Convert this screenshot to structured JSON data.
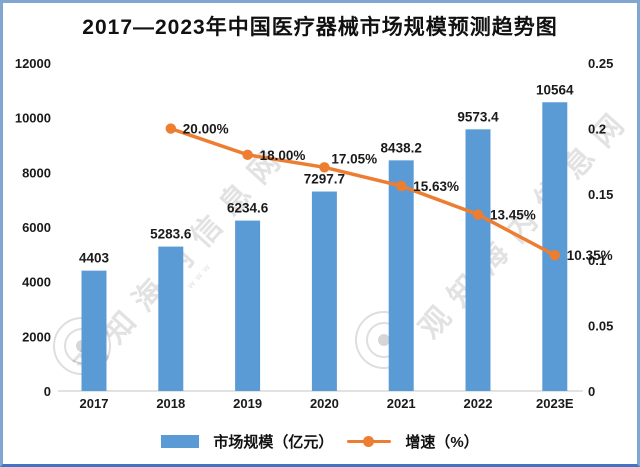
{
  "title": "2017—2023年中国医疗器械市场规模预测趋势图",
  "chart_data": {
    "type": "bar",
    "subtype": "bar+line combo, dual axis",
    "title": "2017—2023年中国医疗器械市场规模预测趋势图",
    "xlabel": "",
    "ylabel": "",
    "categories": [
      "2017",
      "2018",
      "2019",
      "2020",
      "2021",
      "2022",
      "2023E"
    ],
    "series": [
      {
        "name": "市场规模（亿元）",
        "type": "bar",
        "axis": "left",
        "values": [
          4403,
          5283.6,
          6234.6,
          7297.7,
          8438.2,
          9573.4,
          10564
        ],
        "data_labels": [
          "4403",
          "5283.6",
          "6234.6",
          "7297.7",
          "8438.2",
          "9573.4",
          "10564"
        ]
      },
      {
        "name": "增速（%）",
        "type": "line",
        "axis": "right",
        "values": [
          null,
          0.2,
          0.18,
          0.1705,
          0.1563,
          0.1345,
          0.1035
        ],
        "data_labels": [
          "",
          "20.00%",
          "18.00%",
          "17.05%",
          "15.63%",
          "13.45%",
          "10.35%"
        ]
      }
    ],
    "left_axis": {
      "min": 0,
      "max": 12000,
      "step": 2000,
      "tick_values": [
        0,
        2000,
        4000,
        6000,
        8000,
        10000,
        12000
      ],
      "tick_labels": [
        "0",
        "2000",
        "4000",
        "6000",
        "8000",
        "10000",
        "12000"
      ]
    },
    "right_axis": {
      "min": 0,
      "max": 0.25,
      "step": 0.05,
      "tick_values": [
        0,
        0.05,
        0.1,
        0.15,
        0.2,
        0.25
      ],
      "tick_labels": [
        "0",
        "0.05",
        "0.1",
        "0.15",
        "0.2",
        "0.25"
      ]
    },
    "colors": {
      "bar": "#5b9bd5",
      "line": "#ed7d31",
      "text": "#1a1a1a",
      "axis_line": "#d9d9d9"
    },
    "grid": false,
    "legend_position": "bottom"
  },
  "legend": {
    "items": [
      {
        "label": "市场规模（亿元）",
        "swatch": "bar-swatch"
      },
      {
        "label": "增速（%）",
        "swatch": "line-swatch"
      }
    ]
  },
  "watermark": {
    "text": "观知海内信息网",
    "subtext": "www"
  }
}
